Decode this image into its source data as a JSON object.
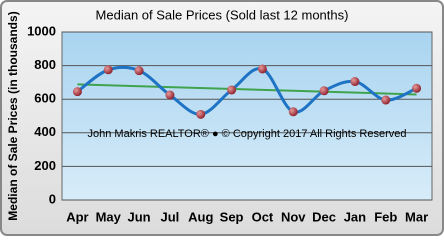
{
  "chart_data": {
    "type": "line",
    "title": "Median of Sale Prices (Sold last 12 months)",
    "y_label": "Median of Sale Prices (in thousands)",
    "annotation": "John Makris REALTOR®  ●  © Copyright 2017 All Rights Reserved",
    "categories": [
      "Apr",
      "May",
      "Jun",
      "Jul",
      "Aug",
      "Sep",
      "Oct",
      "Nov",
      "Dec",
      "Jan",
      "Feb",
      "Mar"
    ],
    "series": [
      {
        "color": "#1f73c4",
        "values": [
          645,
          775,
          770,
          625,
          510,
          655,
          780,
          525,
          650,
          705,
          595,
          665
        ]
      }
    ],
    "trendline": true,
    "trend_color": "#3fa34d",
    "ylim": [
      0,
      1000
    ],
    "yticks": [
      0,
      200,
      400,
      600,
      800,
      1000
    ],
    "grid": true
  }
}
